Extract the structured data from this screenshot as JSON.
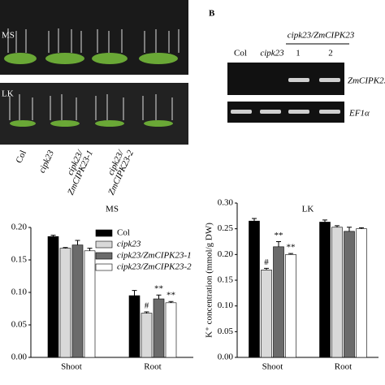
{
  "figure": {
    "panel_b_label": "B",
    "photo_labels": [
      "MS",
      "LK"
    ],
    "genotypes": [
      [
        "Col"
      ],
      [
        "cipk23"
      ],
      [
        "cipk23/",
        "ZmCIPK23-1"
      ],
      [
        "cipk23/",
        "ZmCIPK23-2"
      ]
    ],
    "gel": {
      "lanes": [
        "Col",
        "cipk23",
        "1",
        "2"
      ],
      "group": "cipk23/ZmCIPK23",
      "genes": [
        "ZmCIPK2.",
        "EF1α"
      ]
    }
  },
  "chart_data": [
    {
      "type": "bar",
      "title": "MS",
      "categories": [
        "Shoot",
        "Root"
      ],
      "legend": true,
      "ylim": [
        0,
        0.2
      ],
      "yticks": [
        {
          "value": 0,
          "label": "0.00"
        },
        {
          "value": 0.05,
          "label": "0.05"
        },
        {
          "value": 0.1,
          "label": "0.10"
        },
        {
          "value": 0.15,
          "label": "0.15"
        },
        {
          "value": 0.2,
          "label": "0.20"
        }
      ],
      "series": [
        {
          "name": "Col",
          "color": "#000000",
          "values": [
            0.186,
            0.095
          ],
          "errors": [
            0.002,
            0.008
          ]
        },
        {
          "name": "cipk23",
          "color": "#d9d9d9",
          "values": [
            0.168,
            0.068
          ],
          "errors": [
            0.001,
            0.002
          ],
          "significance": [
            null,
            "#"
          ]
        },
        {
          "name": "cipk23/ZmCIPK23-1",
          "color": "#6b6b6b",
          "values": [
            0.173,
            0.09
          ],
          "errors": [
            0.007,
            0.006
          ],
          "significance": [
            null,
            "**"
          ]
        },
        {
          "name": "cipk23/ZmCIPK23-2",
          "color": "#ffffff",
          "values": [
            0.164,
            0.084
          ],
          "errors": [
            0.004,
            0.002
          ],
          "significance": [
            null,
            "**"
          ]
        }
      ]
    },
    {
      "type": "bar",
      "title": "LK",
      "categories": [
        "Shoot",
        "Root"
      ],
      "legend": false,
      "y_label": "K⁺ concentration (mmol/g DW)",
      "ylim": [
        0,
        0.3
      ],
      "yticks": [
        {
          "value": 0,
          "label": "0.00"
        },
        {
          "value": 0.05,
          "label": "0.05"
        },
        {
          "value": 0.1,
          "label": "0.10"
        },
        {
          "value": 0.15,
          "label": "0.15"
        },
        {
          "value": 0.2,
          "label": "0.20"
        },
        {
          "value": 0.25,
          "label": "0.25"
        },
        {
          "value": 0.3,
          "label": "0.30"
        }
      ],
      "series": [
        {
          "name": "Col",
          "color": "#000000",
          "values": [
            0.265,
            0.263
          ],
          "errors": [
            0.005,
            0.004
          ]
        },
        {
          "name": "cipk23",
          "color": "#d9d9d9",
          "values": [
            0.17,
            0.253
          ],
          "errors": [
            0.003,
            0.003
          ],
          "significance": [
            "#",
            null
          ]
        },
        {
          "name": "cipk23/ZmCIPK23-1",
          "color": "#6b6b6b",
          "values": [
            0.215,
            0.245
          ],
          "errors": [
            0.01,
            0.008
          ],
          "significance": [
            "**",
            null
          ]
        },
        {
          "name": "cipk23/ZmCIPK23-2",
          "color": "#ffffff",
          "values": [
            0.2,
            0.25
          ],
          "errors": [
            0.002,
            0.002
          ],
          "significance": [
            "**",
            null
          ]
        }
      ]
    }
  ]
}
